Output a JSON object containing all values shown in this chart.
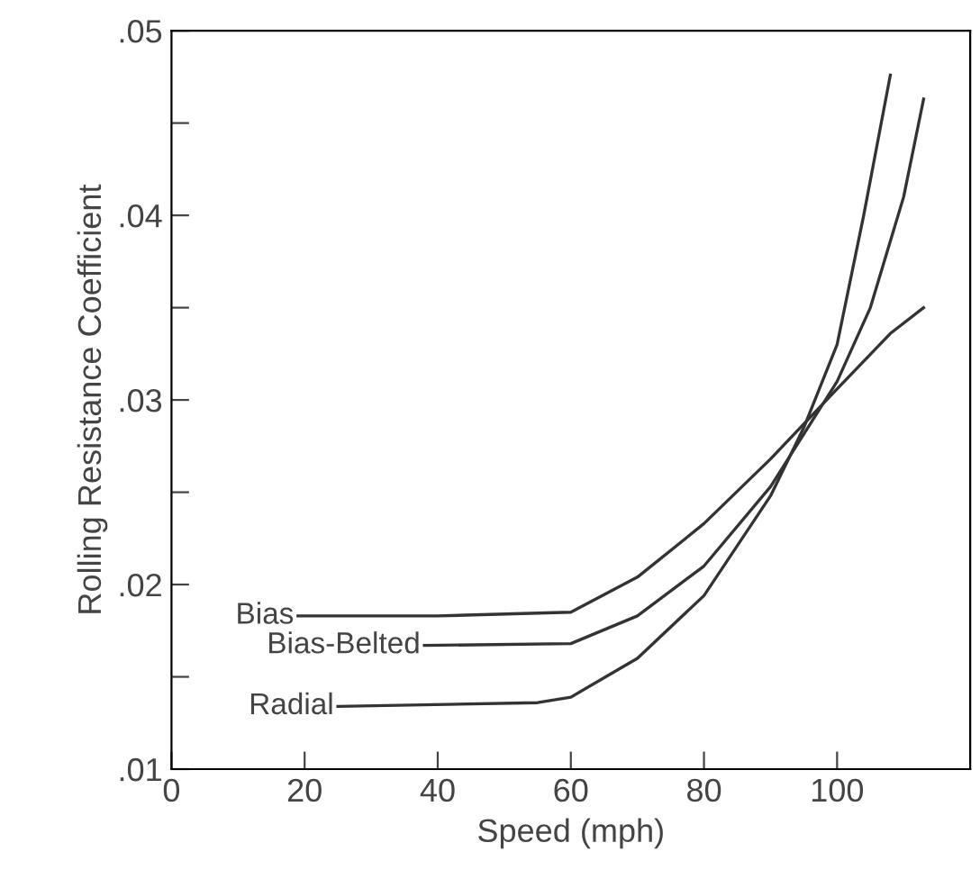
{
  "chart_data": {
    "type": "line",
    "xlabel": "Speed (mph)",
    "ylabel": "Rolling Resistance Coefficient",
    "xlim": [
      0,
      120
    ],
    "ylim": [
      0.01,
      0.05
    ],
    "xticks": [
      0,
      20,
      40,
      60,
      80,
      100
    ],
    "yticks": [
      {
        "value": 0.01,
        "label": ".01"
      },
      {
        "value": 0.015,
        "label": null
      },
      {
        "value": 0.02,
        "label": ".02"
      },
      {
        "value": 0.025,
        "label": null
      },
      {
        "value": 0.03,
        "label": ".03"
      },
      {
        "value": 0.035,
        "label": null
      },
      {
        "value": 0.04,
        "label": ".04"
      },
      {
        "value": 0.045,
        "label": null
      },
      {
        "value": 0.05,
        "label": ".05"
      }
    ],
    "grid": false,
    "legend": false,
    "marker": "none",
    "line_style": "solid",
    "series": [
      {
        "name": "Bias",
        "color": "#333333",
        "x": [
          19,
          40,
          60,
          70,
          80,
          90,
          100,
          108,
          113
        ],
        "values": [
          0.0183,
          0.0183,
          0.0185,
          0.0204,
          0.0233,
          0.0268,
          0.0306,
          0.0336,
          0.035
        ]
      },
      {
        "name": "Bias-Belted",
        "color": "#333333",
        "x": [
          38,
          60,
          70,
          80,
          90,
          100,
          105,
          110,
          113
        ],
        "values": [
          0.0167,
          0.0168,
          0.0183,
          0.021,
          0.0253,
          0.031,
          0.035,
          0.041,
          0.0463
        ]
      },
      {
        "name": "Radial",
        "color": "#333333",
        "x": [
          25,
          55,
          60,
          70,
          80,
          90,
          95,
          100,
          104,
          108
        ],
        "values": [
          0.0134,
          0.0136,
          0.0139,
          0.016,
          0.0194,
          0.0248,
          0.0285,
          0.033,
          0.04,
          0.0476
        ]
      }
    ]
  }
}
